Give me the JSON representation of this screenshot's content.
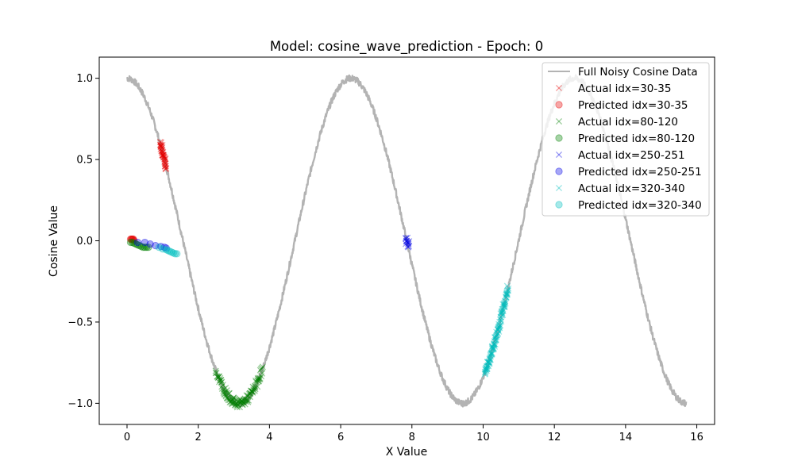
{
  "chart_data": {
    "type": "scatter",
    "title": "Model: cosine_wave_prediction - Epoch: 0",
    "xlabel": "X Value",
    "ylabel": "Cosine Value",
    "xlim": [
      -0.78,
      16.5
    ],
    "ylim": [
      -1.13,
      1.13
    ],
    "xticks": [
      0,
      2,
      4,
      6,
      8,
      10,
      12,
      14,
      16
    ],
    "yticks": [
      -1.0,
      -0.5,
      0.0,
      0.5,
      1.0
    ],
    "xtick_labels": [
      "0",
      "2",
      "4",
      "6",
      "8",
      "10",
      "12",
      "14",
      "16"
    ],
    "ytick_labels": [
      "−1.0",
      "−0.5",
      "0.0",
      "0.5",
      "1.0"
    ],
    "grid": false,
    "legend_position": "top-right",
    "background_curve": {
      "name": "Full Noisy Cosine Data",
      "color": "#b3b3b3",
      "function": "cos",
      "x_range": [
        0,
        15.7
      ],
      "noise": 0.02
    },
    "series": [
      {
        "name": "Actual idx=30-35",
        "marker": "x",
        "color": "#e60000",
        "x": [
          0.94,
          0.97,
          1.0,
          1.03,
          1.06,
          1.09
        ],
        "y": [
          0.59,
          0.57,
          0.54,
          0.52,
          0.49,
          0.46
        ]
      },
      {
        "name": "Predicted idx=30-35",
        "marker": "o",
        "color": "#e60000",
        "x": [
          0.1,
          0.12,
          0.14,
          0.16,
          0.18,
          0.2
        ],
        "y": [
          0.01,
          0.01,
          0.01,
          0.01,
          0.01,
          0.0
        ]
      },
      {
        "name": "Actual idx=80-120",
        "marker": "x",
        "color": "#008000",
        "x_range": [
          2.5,
          3.8
        ],
        "function": "cos"
      },
      {
        "name": "Predicted idx=80-120",
        "marker": "o",
        "color": "#008000",
        "x": [
          0.1,
          0.15,
          0.2,
          0.25,
          0.3,
          0.35,
          0.4,
          0.45,
          0.5,
          0.55,
          0.6
        ],
        "y": [
          -0.01,
          -0.01,
          -0.015,
          -0.02,
          -0.025,
          -0.03,
          -0.035,
          -0.04,
          -0.04,
          -0.04,
          -0.04
        ]
      },
      {
        "name": "Actual idx=250-251",
        "marker": "x",
        "color": "#0000e6",
        "x": [
          7.85,
          7.9
        ],
        "y": [
          0.0,
          -0.02
        ]
      },
      {
        "name": "Predicted idx=250-251",
        "marker": "o",
        "color": "#0000e6",
        "x": [
          0.3,
          0.5,
          0.65,
          0.8,
          0.95,
          1.05,
          1.1
        ],
        "y": [
          -0.01,
          -0.01,
          -0.02,
          -0.03,
          -0.035,
          -0.04,
          -0.045
        ]
      },
      {
        "name": "Actual idx=320-340",
        "marker": "x",
        "color": "#00bfbf",
        "x_range": [
          10.05,
          10.7
        ],
        "function": "cos"
      },
      {
        "name": "Predicted idx=320-340",
        "marker": "o",
        "color": "#00bfbf",
        "x": [
          0.9,
          1.0,
          1.1,
          1.15,
          1.2,
          1.25,
          1.3,
          1.35,
          1.4
        ],
        "y": [
          -0.04,
          -0.05,
          -0.055,
          -0.06,
          -0.065,
          -0.07,
          -0.075,
          -0.08,
          -0.08
        ]
      }
    ]
  },
  "legend": {
    "items": [
      "Full Noisy Cosine Data",
      "Actual idx=30-35",
      "Predicted idx=30-35",
      "Actual idx=80-120",
      "Predicted idx=80-120",
      "Actual idx=250-251",
      "Predicted idx=250-251",
      "Actual idx=320-340",
      "Predicted idx=320-340"
    ]
  }
}
